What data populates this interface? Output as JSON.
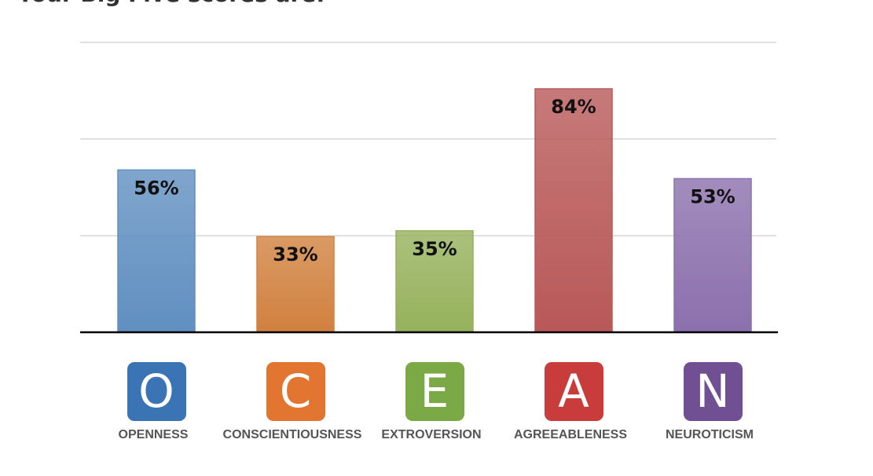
{
  "chart_data": {
    "type": "bar",
    "title": "Your Big Five scores are:",
    "categories": [
      "OPENNESS",
      "CONSCIENTIOUSNESS",
      "EXTROVERSION",
      "AGREEABLENESS",
      "NEUROTICISM"
    ],
    "letters": [
      "O",
      "C",
      "E",
      "A",
      "N"
    ],
    "values": [
      56,
      33,
      35,
      84,
      53
    ],
    "value_labels": [
      "56%",
      "33%",
      "35%",
      "84%",
      "53%"
    ],
    "colors": [
      "#6b9fd6",
      "#e88f45",
      "#a6c566",
      "#cd6262",
      "#9b7cc0"
    ],
    "icon_colors": [
      "#3b74b4",
      "#e27631",
      "#7aa945",
      "#c93c3c",
      "#714f93"
    ],
    "ylim": [
      0,
      100
    ],
    "yticks": [
      0,
      33.3,
      66.7,
      100
    ],
    "grid": true
  }
}
